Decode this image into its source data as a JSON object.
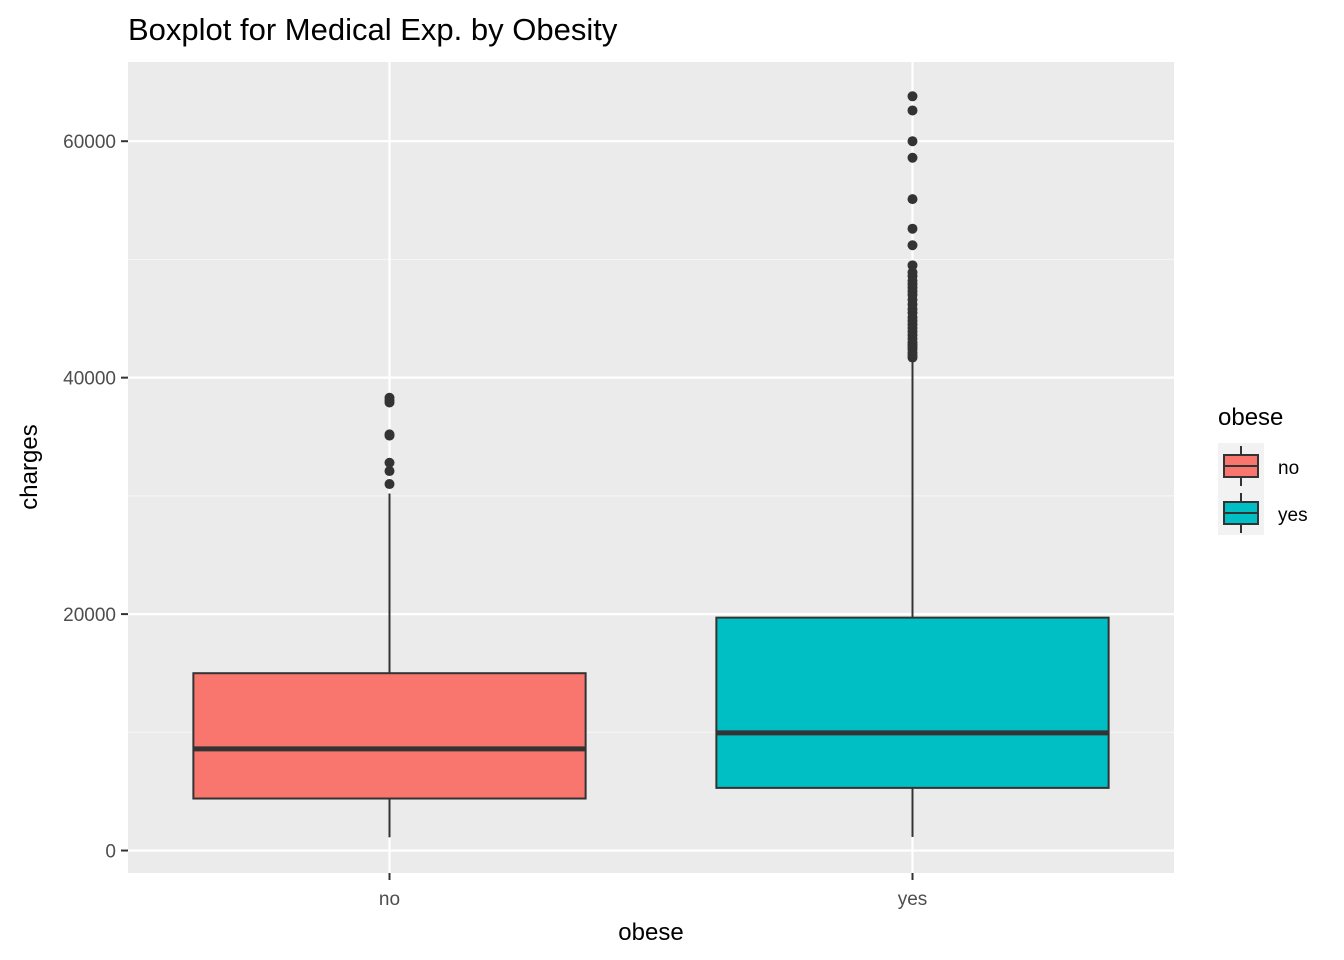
{
  "chart_data": {
    "type": "boxplot",
    "title": "Boxplot for Medical Exp. by Obesity",
    "xlabel": "obese",
    "ylabel": "charges",
    "categories": [
      "no",
      "yes"
    ],
    "ylim": [
      -1900,
      66700
    ],
    "yticks": [
      0,
      20000,
      40000,
      60000
    ],
    "ytick_labels": [
      "0",
      "20000",
      "40000",
      "60000"
    ],
    "grid": true,
    "legend": {
      "title": "obese",
      "position": "right",
      "entries": [
        {
          "label": "no",
          "color": "#F8766D"
        },
        {
          "label": "yes",
          "color": "#00BFC4"
        }
      ]
    },
    "series": [
      {
        "name": "no",
        "color": "#F8766D",
        "whisker_low": 1120,
        "q1": 4400,
        "median": 8600,
        "q3": 15000,
        "whisker_high": 30200,
        "outliers": [
          31000,
          32100,
          32800,
          35100,
          35200,
          37900,
          38100,
          38300
        ]
      },
      {
        "name": "yes",
        "color": "#00BFC4",
        "whisker_low": 1150,
        "q1": 5300,
        "median": 9950,
        "q3": 19700,
        "whisker_high": 41400,
        "outliers": [
          41700,
          41900,
          42100,
          42400,
          42600,
          42800,
          43000,
          43300,
          43600,
          43900,
          44200,
          44500,
          44800,
          45100,
          45500,
          45800,
          46200,
          46600,
          47000,
          47300,
          47600,
          47900,
          48200,
          48600,
          48900,
          49500,
          51200,
          52600,
          55100,
          58600,
          60000,
          62600,
          63800
        ]
      }
    ]
  },
  "colors": {
    "panel_background": "#EBEBEB",
    "grid_major": "#FFFFFF",
    "grid_minor": "#F5F5F5",
    "box_outline": "#333333",
    "tick_text": "#4D4D4D"
  }
}
